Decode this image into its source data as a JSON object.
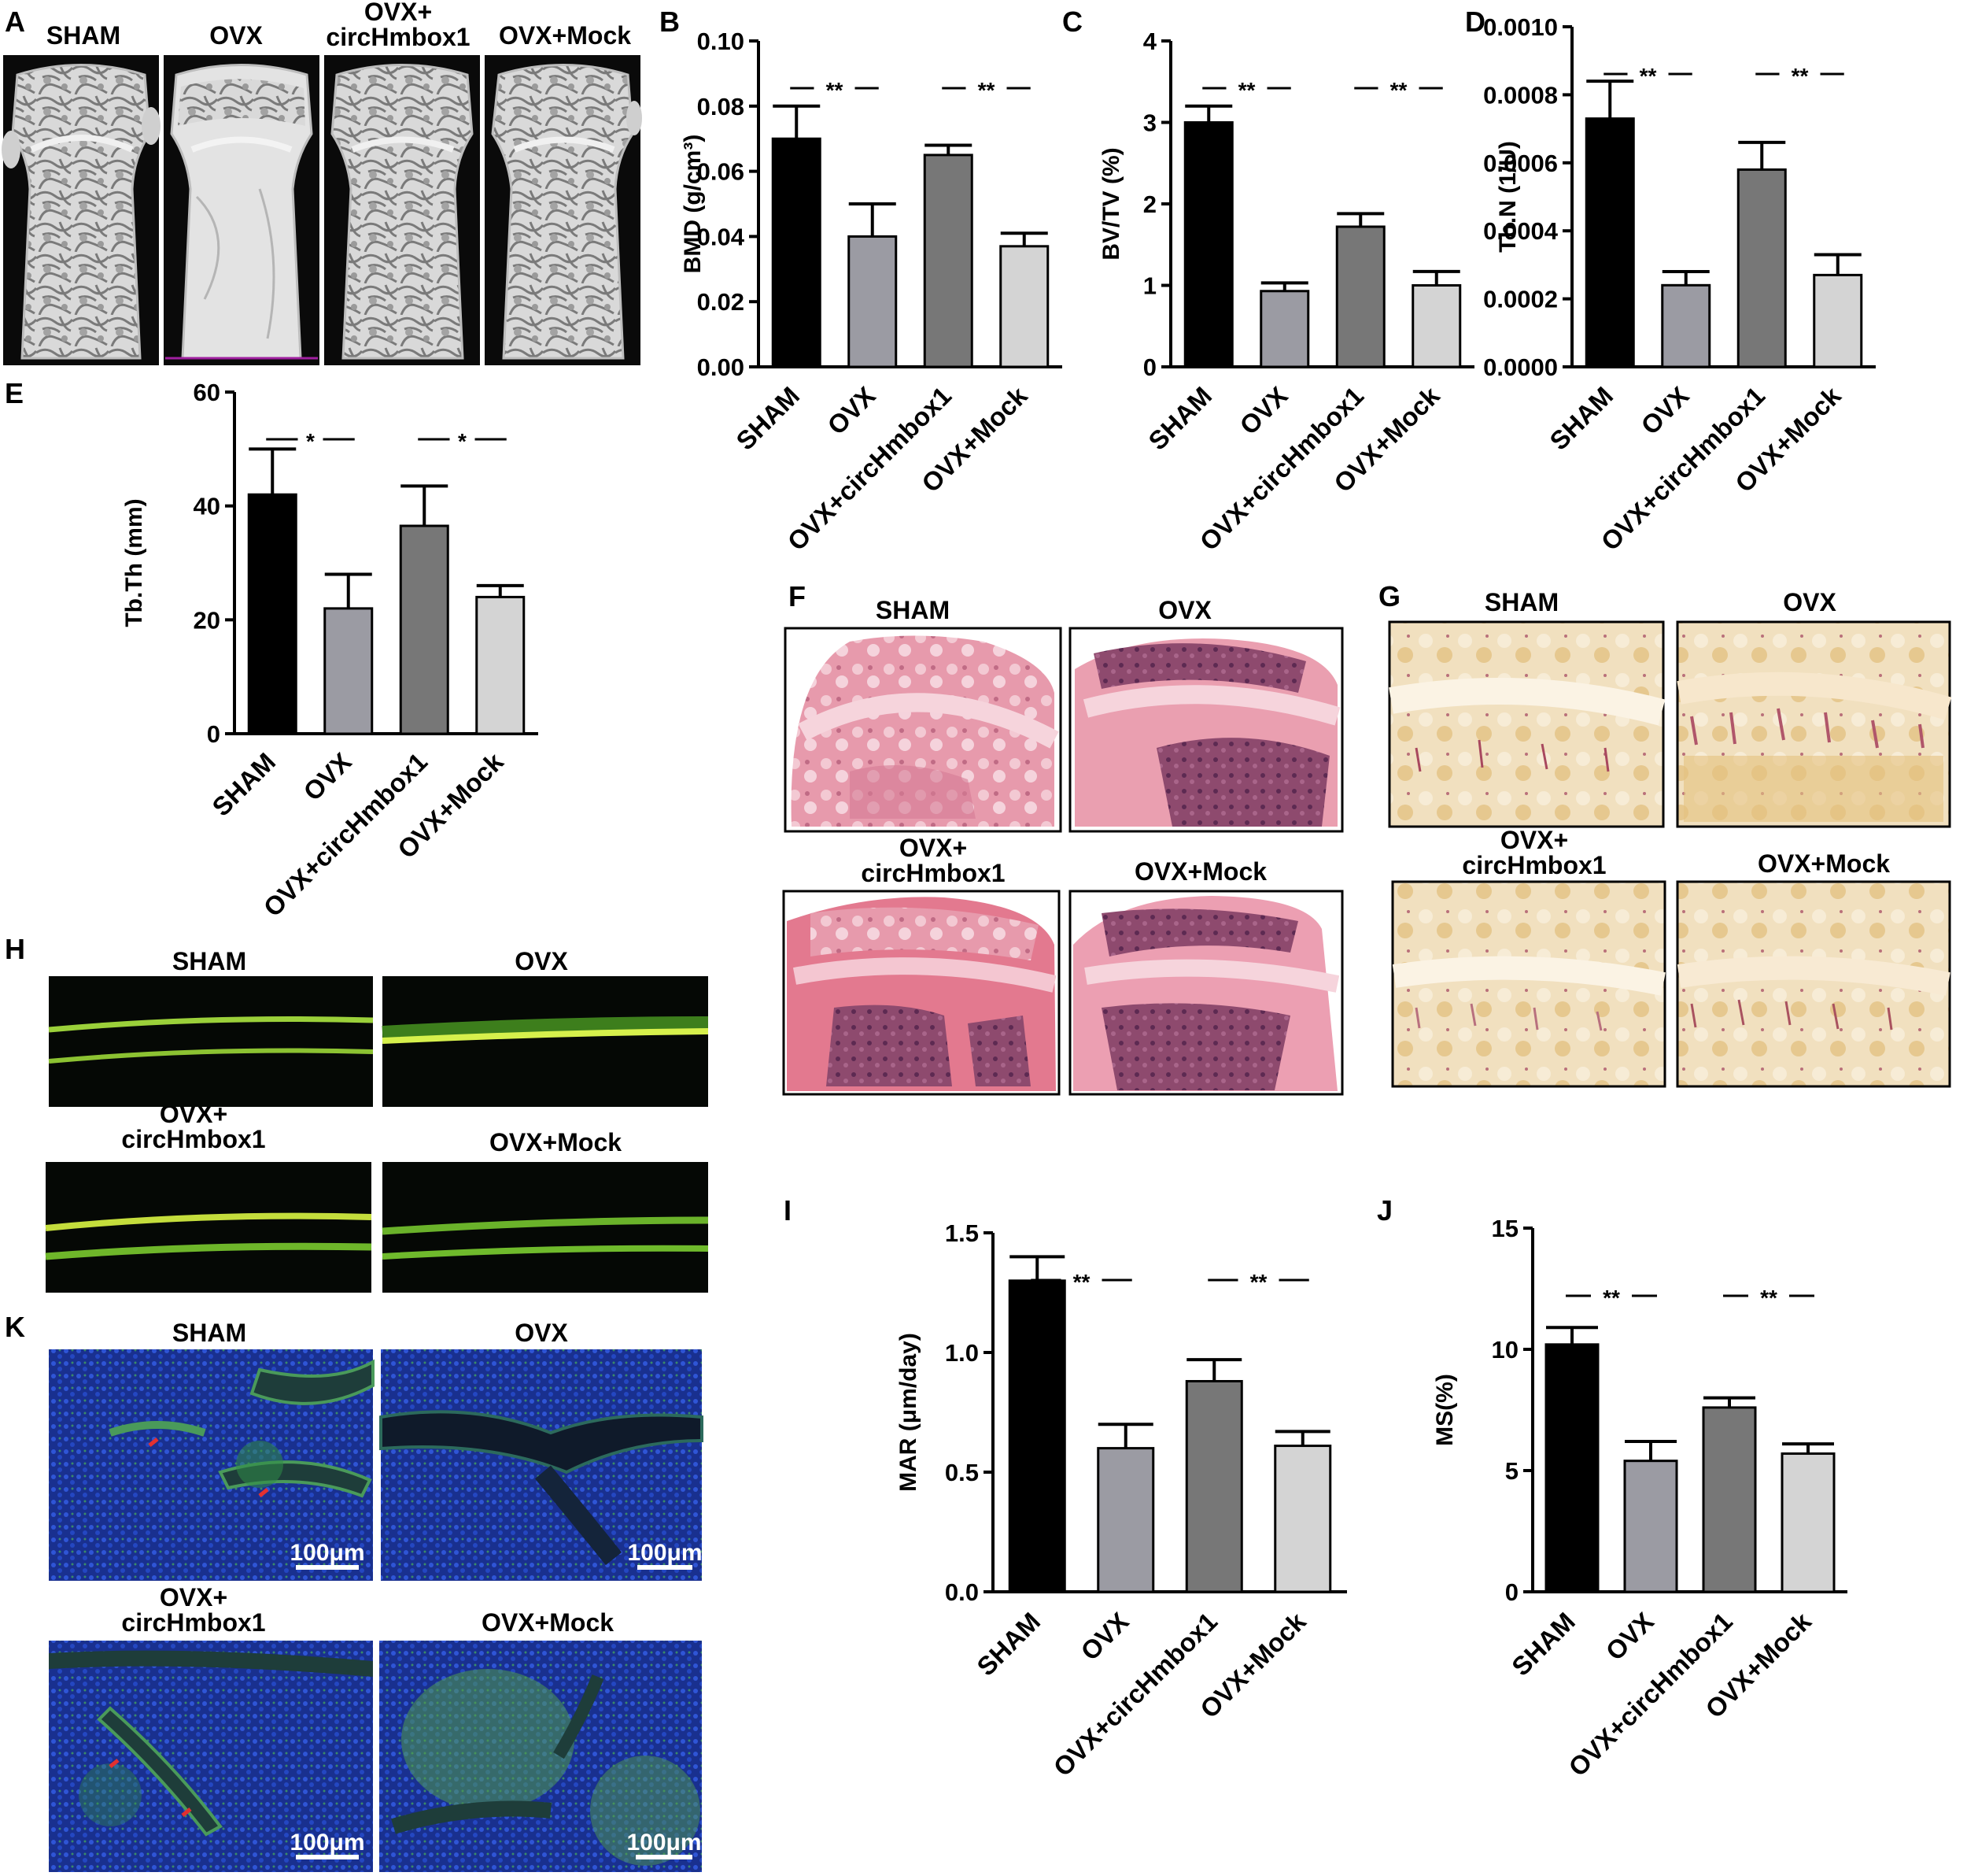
{
  "panel_letters": [
    "A",
    "B",
    "C",
    "D",
    "E",
    "F",
    "G",
    "H",
    "I",
    "J",
    "K"
  ],
  "groups": [
    "SHAM",
    "OVX",
    "OVX+circHmbox1",
    "OVX+Mock"
  ],
  "image_labels": {
    "sham": "SHAM",
    "ovx": "OVX",
    "ovx_circ_line1": "OVX+",
    "ovx_circ_line2": "circHmbox1",
    "ovx_mock": "OVX+Mock"
  },
  "scale_bar_label": "100μm",
  "colors": {
    "bar_sham": "#000000",
    "bar_ovx": "#9b9ba3",
    "bar_circ": "#777777",
    "bar_mock": "#d4d4d4",
    "microct_bg": "#0a0a0a",
    "he_pink": "#e9a3b3",
    "trap_beige": "#efdcb8",
    "calcein_green": "#8fd12a",
    "dapi_blue": "#1f3ab8"
  },
  "chart_data": [
    {
      "panel": "B",
      "type": "bar",
      "categories": [
        "SHAM",
        "OVX",
        "OVX+circHmbox1",
        "OVX+Mock"
      ],
      "values": [
        0.07,
        0.04,
        0.065,
        0.037
      ],
      "errors": [
        0.01,
        0.01,
        0.003,
        0.004
      ],
      "ylabel": "BMD (g/cm³)",
      "ylim": [
        0,
        0.1
      ],
      "yticks": [
        "0.00",
        "0.02",
        "0.04",
        "0.06",
        "0.08",
        "0.10"
      ],
      "significance": [
        {
          "between": [
            "SHAM",
            "OVX"
          ],
          "label": "**"
        },
        {
          "between": [
            "OVX+circHmbox1",
            "OVX+Mock"
          ],
          "label": "**"
        }
      ]
    },
    {
      "panel": "C",
      "type": "bar",
      "categories": [
        "SHAM",
        "OVX",
        "OVX+circHmbox1",
        "OVX+Mock"
      ],
      "values": [
        3.0,
        0.93,
        1.72,
        1.0
      ],
      "errors": [
        0.2,
        0.1,
        0.16,
        0.17
      ],
      "ylabel": "BV/TV (%)",
      "ylim": [
        0,
        4
      ],
      "yticks": [
        "0",
        "1",
        "2",
        "3",
        "4"
      ],
      "significance": [
        {
          "between": [
            "SHAM",
            "OVX"
          ],
          "label": "**"
        },
        {
          "between": [
            "OVX+circHmbox1",
            "OVX+Mock"
          ],
          "label": "**"
        }
      ]
    },
    {
      "panel": "D",
      "type": "bar",
      "categories": [
        "SHAM",
        "OVX",
        "OVX+circHmbox1",
        "OVX+Mock"
      ],
      "values": [
        0.00073,
        0.00024,
        0.00058,
        0.00027
      ],
      "errors": [
        0.00011,
        4e-05,
        8e-05,
        6e-05
      ],
      "ylabel": "Tb.N (1/U)",
      "ylim": [
        0,
        0.001
      ],
      "yticks": [
        "0.0000",
        "0.0002",
        "0.0004",
        "0.0006",
        "0.0008",
        "0.0010"
      ],
      "significance": [
        {
          "between": [
            "SHAM",
            "OVX"
          ],
          "label": "**"
        },
        {
          "between": [
            "OVX+circHmbox1",
            "OVX+Mock"
          ],
          "label": "**"
        }
      ]
    },
    {
      "panel": "E",
      "type": "bar",
      "categories": [
        "SHAM",
        "OVX",
        "OVX+circHmbox1",
        "OVX+Mock"
      ],
      "values": [
        42,
        22,
        36.5,
        24
      ],
      "errors": [
        8,
        6,
        7,
        2
      ],
      "ylabel": "Tb.Th (mm)",
      "ylim": [
        0,
        60
      ],
      "yticks": [
        "0",
        "20",
        "40",
        "60"
      ],
      "significance": [
        {
          "between": [
            "SHAM",
            "OVX"
          ],
          "label": "*"
        },
        {
          "between": [
            "OVX+circHmbox1",
            "OVX+Mock"
          ],
          "label": "*"
        }
      ]
    },
    {
      "panel": "I",
      "type": "bar",
      "categories": [
        "SHAM",
        "OVX",
        "OVX+circHmbox1",
        "OVX+Mock"
      ],
      "values": [
        1.3,
        0.6,
        0.88,
        0.61
      ],
      "errors": [
        0.1,
        0.1,
        0.09,
        0.06
      ],
      "ylabel": "MAR (μm/day)",
      "ylim": [
        0,
        1.5
      ],
      "yticks": [
        "0.0",
        "0.5",
        "1.0",
        "1.5"
      ],
      "significance": [
        {
          "between": [
            "SHAM",
            "OVX"
          ],
          "label": "**"
        },
        {
          "between": [
            "OVX+circHmbox1",
            "OVX+Mock"
          ],
          "label": "**"
        }
      ]
    },
    {
      "panel": "J",
      "type": "bar",
      "categories": [
        "SHAM",
        "OVX",
        "OVX+circHmbox1",
        "OVX+Mock"
      ],
      "values": [
        10.2,
        5.4,
        7.6,
        5.7
      ],
      "errors": [
        0.7,
        0.8,
        0.4,
        0.4
      ],
      "ylabel": "MS(%)",
      "ylim": [
        0,
        15
      ],
      "yticks": [
        "0",
        "5",
        "10",
        "15"
      ],
      "significance": [
        {
          "between": [
            "SHAM",
            "OVX"
          ],
          "label": "**"
        },
        {
          "between": [
            "OVX+circHmbox1",
            "OVX+Mock"
          ],
          "label": "**"
        }
      ]
    }
  ]
}
